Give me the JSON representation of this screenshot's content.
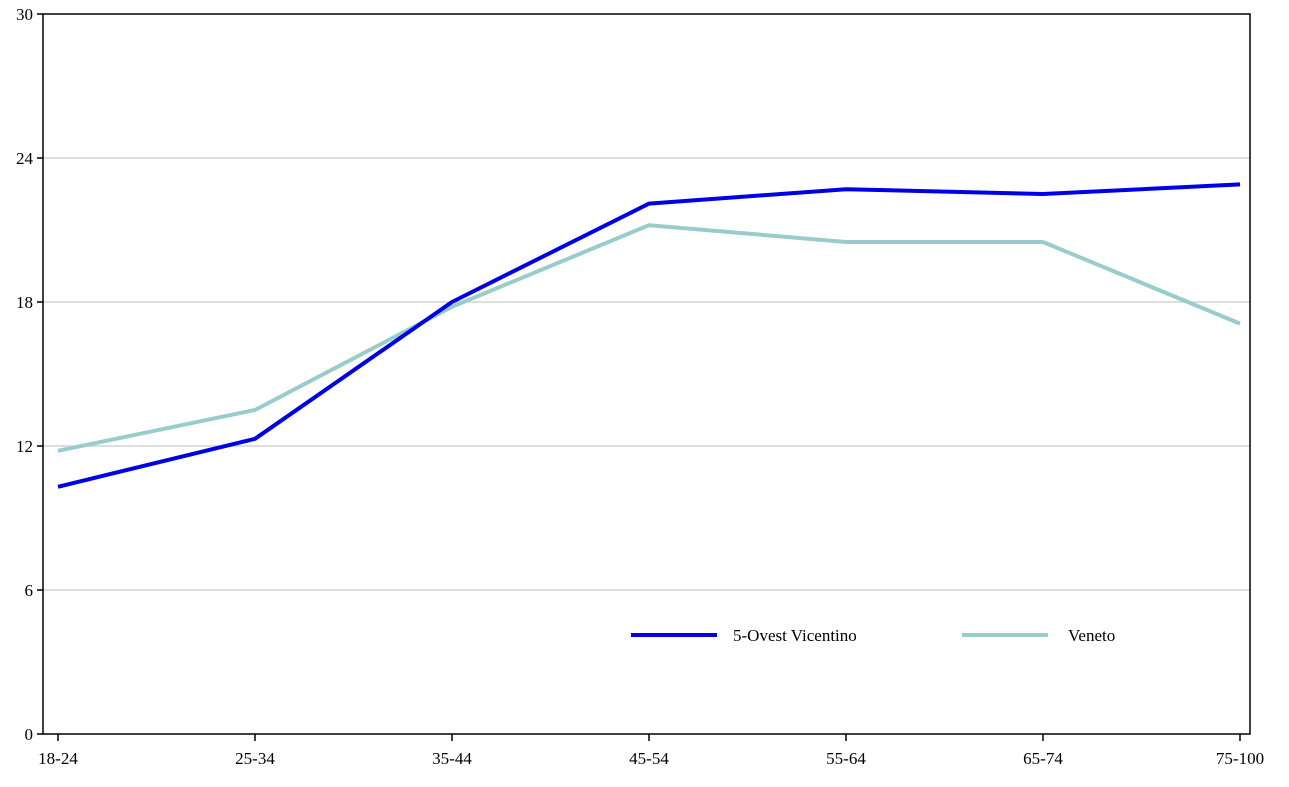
{
  "chart_data": {
    "type": "line",
    "categories": [
      "18-24",
      "25-34",
      "35-44",
      "45-54",
      "55-64",
      "65-74",
      "75-100"
    ],
    "series": [
      {
        "name": "5-Ovest Vicentino",
        "color": "#0000e6",
        "values": [
          10.3,
          12.3,
          18.0,
          22.1,
          22.7,
          22.5,
          22.9
        ]
      },
      {
        "name": "Veneto",
        "color": "#99cccc",
        "values": [
          11.8,
          13.5,
          17.8,
          21.2,
          20.5,
          20.5,
          17.1
        ]
      }
    ],
    "ylim": [
      0,
      30
    ],
    "yticks": [
      "0",
      "6",
      "12",
      "18",
      "24",
      "30"
    ],
    "grid": true,
    "legend_position": "bottom-right"
  }
}
